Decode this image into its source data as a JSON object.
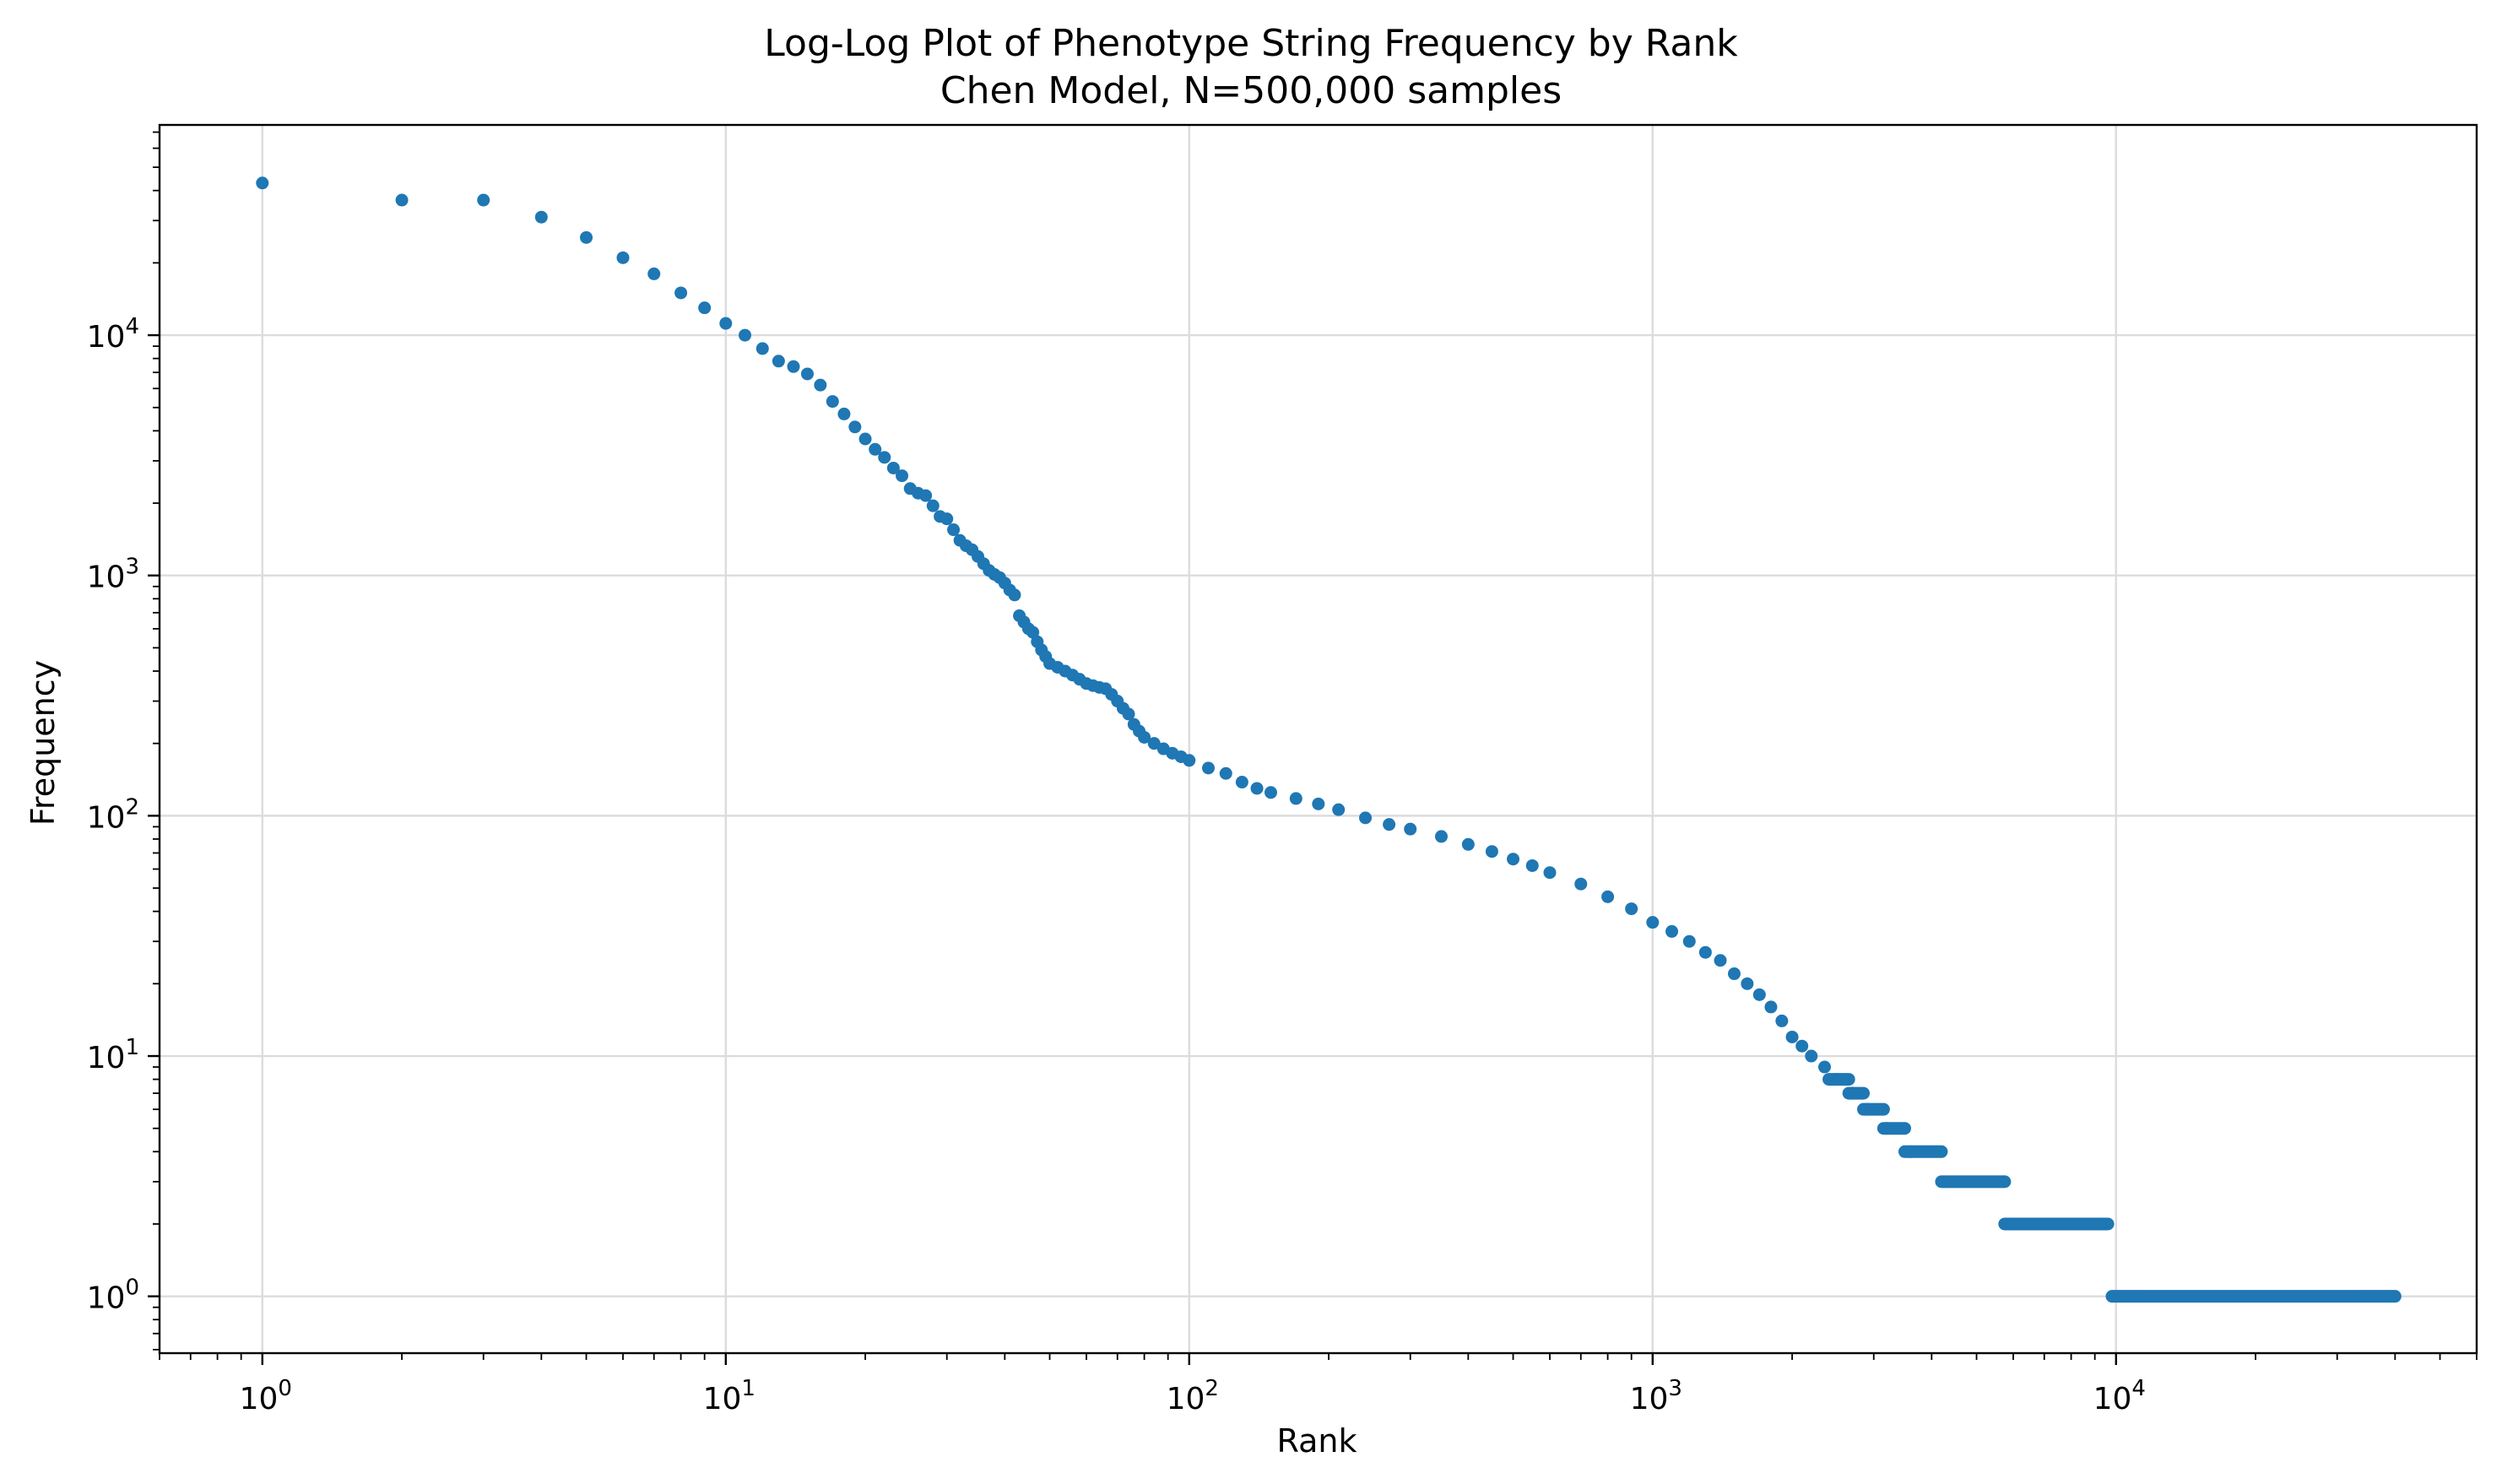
{
  "chart_data": {
    "type": "scatter",
    "title": "Log-Log Plot of Phenotype String Frequency by Rank",
    "subtitle": "Chen Model, N=500,000 samples",
    "xlabel": "Rank",
    "ylabel": "Frequency",
    "xscale": "log",
    "yscale": "log",
    "xlim": [
      0.6,
      60000
    ],
    "ylim": [
      0.58,
      75000
    ],
    "x_ticks": [
      1,
      10,
      100,
      1000,
      10000
    ],
    "y_ticks": [
      1,
      10,
      100,
      1000,
      10000
    ],
    "grid": true,
    "legend": "none",
    "series_color": "#1f77b4",
    "points": [
      [
        1,
        43000
      ],
      [
        2,
        36500
      ],
      [
        3,
        36500
      ],
      [
        4,
        31000
      ],
      [
        5,
        25500
      ],
      [
        6,
        21000
      ],
      [
        7,
        18000
      ],
      [
        8,
        15000
      ],
      [
        9,
        13000
      ],
      [
        10,
        11200
      ],
      [
        11,
        10000
      ],
      [
        12,
        8800
      ],
      [
        13,
        7800
      ],
      [
        14,
        7400
      ],
      [
        15,
        6900
      ],
      [
        16,
        6200
      ],
      [
        17,
        5300
      ],
      [
        18,
        4700
      ],
      [
        19,
        4150
      ],
      [
        20,
        3700
      ],
      [
        21,
        3350
      ],
      [
        22,
        3100
      ],
      [
        23,
        2800
      ],
      [
        24,
        2600
      ],
      [
        25,
        2300
      ],
      [
        26,
        2200
      ],
      [
        27,
        2150
      ],
      [
        28,
        1950
      ],
      [
        29,
        1760
      ],
      [
        30,
        1720
      ],
      [
        31,
        1550
      ],
      [
        32,
        1400
      ],
      [
        33,
        1330
      ],
      [
        34,
        1280
      ],
      [
        35,
        1200
      ],
      [
        36,
        1120
      ],
      [
        37,
        1050
      ],
      [
        38,
        1010
      ],
      [
        39,
        980
      ],
      [
        40,
        930
      ],
      [
        41,
        870
      ],
      [
        42,
        830
      ],
      [
        43,
        680
      ],
      [
        44,
        640
      ],
      [
        45,
        600
      ],
      [
        46,
        580
      ],
      [
        47,
        530
      ],
      [
        48,
        490
      ],
      [
        49,
        460
      ],
      [
        50,
        430
      ],
      [
        52,
        415
      ],
      [
        54,
        400
      ],
      [
        56,
        385
      ],
      [
        58,
        370
      ],
      [
        60,
        355
      ],
      [
        62,
        348
      ],
      [
        64,
        342
      ],
      [
        66,
        338
      ],
      [
        68,
        320
      ],
      [
        70,
        300
      ],
      [
        72,
        280
      ],
      [
        74,
        265
      ],
      [
        76,
        240
      ],
      [
        78,
        225
      ],
      [
        80,
        212
      ],
      [
        84,
        200
      ],
      [
        88,
        190
      ],
      [
        92,
        182
      ],
      [
        96,
        176
      ],
      [
        100,
        170
      ],
      [
        110,
        158
      ],
      [
        120,
        150
      ],
      [
        130,
        138
      ],
      [
        140,
        130
      ],
      [
        150,
        125
      ],
      [
        170,
        118
      ],
      [
        190,
        112
      ],
      [
        210,
        106
      ],
      [
        240,
        98
      ],
      [
        270,
        92
      ],
      [
        300,
        88
      ],
      [
        350,
        82
      ],
      [
        400,
        76
      ],
      [
        450,
        71
      ],
      [
        500,
        66
      ],
      [
        550,
        62
      ],
      [
        600,
        58
      ],
      [
        700,
        52
      ],
      [
        800,
        46
      ],
      [
        900,
        41
      ],
      [
        1000,
        36
      ],
      [
        1100,
        33
      ],
      [
        1200,
        30
      ],
      [
        1300,
        27
      ],
      [
        1400,
        25
      ],
      [
        1500,
        22
      ],
      [
        1600,
        20
      ],
      [
        1700,
        18
      ],
      [
        1800,
        16
      ],
      [
        1900,
        14
      ],
      [
        2000,
        12
      ],
      [
        2100,
        11
      ],
      [
        2200,
        10
      ],
      [
        2350,
        9
      ],
      [
        2500,
        8
      ],
      [
        2700,
        7
      ],
      [
        2900,
        6
      ],
      [
        3200,
        5
      ],
      [
        3600,
        4
      ]
    ],
    "plateaus": [
      {
        "y": 8,
        "x_start": 2400,
        "x_end": 2650
      },
      {
        "y": 7,
        "x_start": 2650,
        "x_end": 2850
      },
      {
        "y": 6,
        "x_start": 2850,
        "x_end": 3150
      },
      {
        "y": 5,
        "x_start": 3150,
        "x_end": 3500
      },
      {
        "y": 4,
        "x_start": 3500,
        "x_end": 4200
      },
      {
        "y": 3,
        "x_start": 4200,
        "x_end": 5750
      },
      {
        "y": 2,
        "x_start": 5750,
        "x_end": 9600
      },
      {
        "y": 1,
        "x_start": 9800,
        "x_end": 40000
      }
    ]
  }
}
